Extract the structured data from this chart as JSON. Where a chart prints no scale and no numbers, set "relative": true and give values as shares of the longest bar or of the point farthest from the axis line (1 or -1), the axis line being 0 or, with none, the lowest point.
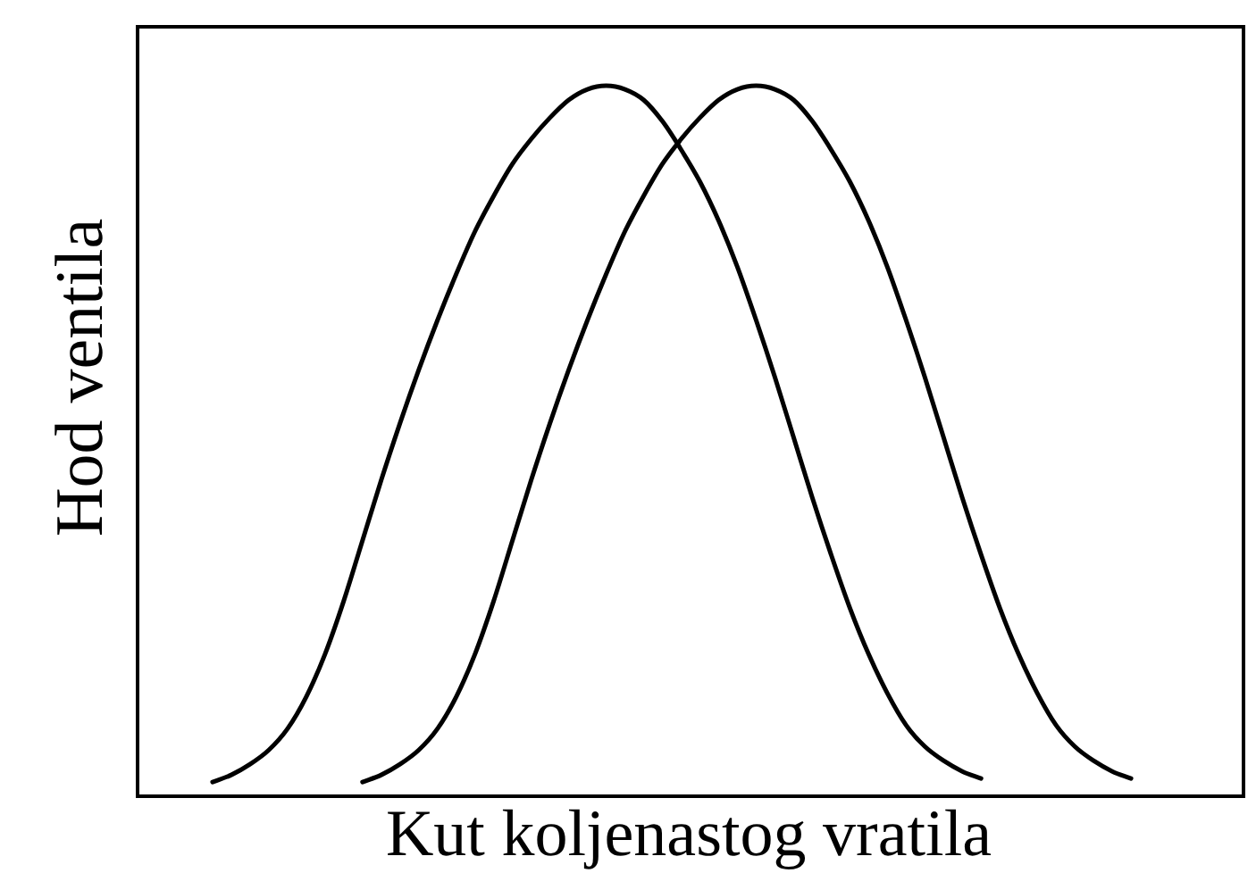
{
  "chart_data": {
    "type": "line",
    "relative": true,
    "xlabel": "Kut koljenastog vratila",
    "ylabel": "Hod ventila",
    "categories": [
      null,
      null,
      null,
      null,
      null,
      null,
      null,
      null,
      null,
      null,
      null,
      null,
      null,
      null,
      null,
      null,
      null,
      null,
      null,
      null,
      null,
      null,
      null,
      null,
      null,
      null,
      null,
      null,
      null,
      null,
      null,
      null,
      null,
      null,
      null,
      null,
      null,
      null,
      null,
      null,
      null,
      null,
      null,
      null,
      null,
      null,
      null,
      null,
      null,
      null,
      null,
      null,
      null,
      null,
      null,
      null,
      null,
      null,
      null,
      null
    ],
    "series": [
      {
        "color": "#000000",
        "values": [
          null,
          null,
          null,
          null,
          0.02,
          0.03,
          0.045,
          0.065,
          0.095,
          0.14,
          0.2,
          0.275,
          0.36,
          0.445,
          0.525,
          0.6,
          0.67,
          0.735,
          0.795,
          0.845,
          0.89,
          0.925,
          0.955,
          0.98,
          0.995,
          1,
          0.995,
          0.98,
          0.95,
          0.91,
          0.865,
          0.81,
          0.745,
          0.67,
          0.59,
          0.505,
          0.42,
          0.34,
          0.265,
          0.2,
          0.145,
          0.1,
          0.07,
          0.05,
          0.035,
          0.025,
          null,
          null,
          null,
          null,
          null,
          null,
          null,
          null,
          null,
          null,
          null,
          null,
          null,
          null
        ]
      },
      {
        "color": "#000000",
        "values": [
          null,
          null,
          null,
          null,
          null,
          null,
          null,
          null,
          null,
          null,
          null,
          null,
          0.02,
          0.03,
          0.045,
          0.065,
          0.095,
          0.14,
          0.2,
          0.275,
          0.36,
          0.445,
          0.525,
          0.6,
          0.67,
          0.735,
          0.795,
          0.845,
          0.89,
          0.925,
          0.955,
          0.98,
          0.995,
          1,
          0.995,
          0.98,
          0.95,
          0.91,
          0.865,
          0.81,
          0.745,
          0.67,
          0.59,
          0.505,
          0.42,
          0.34,
          0.265,
          0.2,
          0.145,
          0.1,
          0.07,
          0.05,
          0.035,
          0.025,
          null,
          null,
          null,
          null,
          null,
          null
        ]
      }
    ],
    "grid": false,
    "legend": false,
    "marker": "none",
    "line_style": "solid"
  }
}
